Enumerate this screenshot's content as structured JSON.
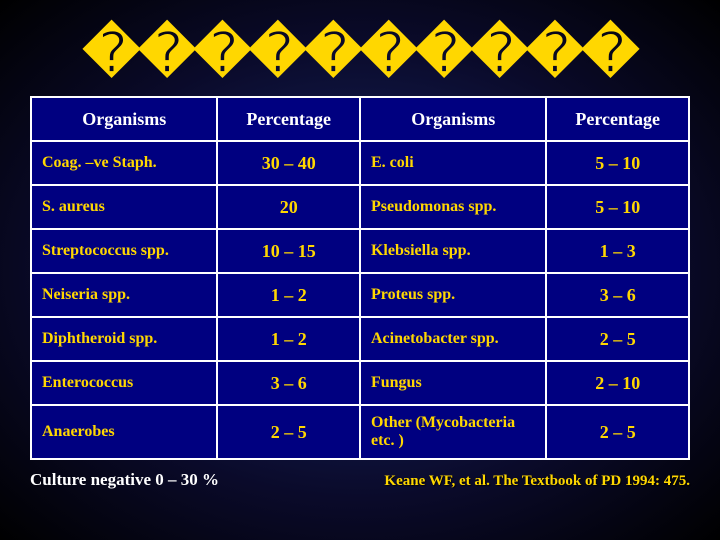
{
  "title_placeholder": "����������",
  "headers": {
    "col1": "Organisms",
    "col2": "Percentage",
    "col3": "Organisms",
    "col4": "Percentage"
  },
  "rows": [
    {
      "o1": "Coag. –ve Staph.",
      "p1": "30 – 40",
      "o2": "E. coli",
      "p2": "5 – 10"
    },
    {
      "o1": "S. aureus",
      "p1": "20",
      "o2": "Pseudomonas spp.",
      "p2": "5 – 10"
    },
    {
      "o1": "Streptococcus spp.",
      "p1": "10 – 15",
      "o2": "Klebsiella spp.",
      "p2": "1 – 3"
    },
    {
      "o1": "Neiseria spp.",
      "p1": "1 – 2",
      "o2": "Proteus spp.",
      "p2": "3 – 6"
    },
    {
      "o1": "Diphtheroid spp.",
      "p1": "1 – 2",
      "o2": "Acinetobacter spp.",
      "p2": "2 – 5"
    },
    {
      "o1": "Enterococcus",
      "p1": "3 – 6",
      "o2": "Fungus",
      "p2": "2 – 10"
    },
    {
      "o1": "Anaerobes",
      "p1": "2 – 5",
      "o2": "Other (Mycobacteria etc. )",
      "p2": "2 – 5"
    }
  ],
  "footer": {
    "left": "Culture negative 0 – 30 %",
    "right": "Keane WF, et al.  The Textbook of PD 1994: 475."
  },
  "style": {
    "type": "table",
    "slide_bg": "radial-gradient navy->black",
    "table_border_color": "#ffffff",
    "header_bg": "#000080",
    "header_text_color": "#ffffff",
    "cell_bg": "#000080",
    "cell_text_color": "#ffd700",
    "title_color": "#ffd700",
    "footer_left_color": "#ffffff",
    "footer_right_color": "#ffd700",
    "header_fontsize": 18,
    "cell_fontsize": 16,
    "title_fontsize": 56,
    "columns": 4,
    "data_rows": 7,
    "col_align": [
      "left",
      "center",
      "left",
      "center"
    ]
  }
}
